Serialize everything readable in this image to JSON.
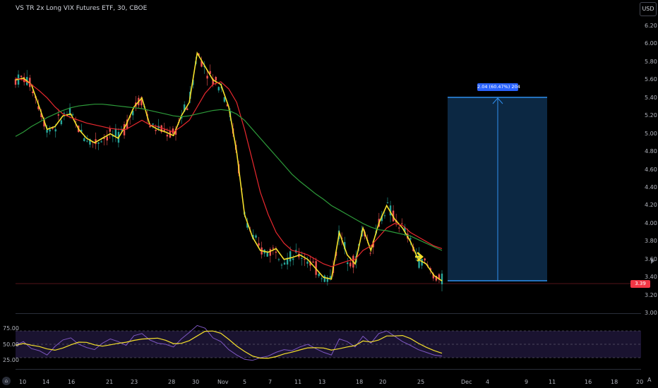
{
  "header": {
    "symbol_title": "VS TR 2x Long VIX Futures ETF, 30, CBOE",
    "currency_button": "USD"
  },
  "price_axis": {
    "ticks": [
      "6.20",
      "6.00",
      "5.80",
      "5.60",
      "5.40",
      "5.20",
      "5.00",
      "4.80",
      "4.60",
      "4.40",
      "4.20",
      "4.00",
      "3.80",
      "3.60",
      "3.40",
      "3.20",
      "3.00"
    ],
    "current_price_tag": "3.39"
  },
  "time_axis": {
    "labels": [
      "10",
      "14",
      "16",
      "21",
      "23",
      "28",
      "30",
      "Nov",
      "5",
      "7",
      "11",
      "13",
      "18",
      "20",
      "25",
      "Dec",
      "4",
      "9",
      "11",
      "16",
      "18",
      "20"
    ]
  },
  "oscillator_axis": {
    "ticks": [
      "75.00",
      "50.00",
      "25.00"
    ]
  },
  "measure_tool": {
    "label": "2.04 (60.47%) 204"
  },
  "footer": {
    "logo": "⌂",
    "auto_button": "A"
  },
  "colors": {
    "background": "#000000",
    "fast_ma": "#f5e02b",
    "medium_ma": "#e8282e",
    "slow_ma": "#2d9b3a",
    "candle_up": "#26a69a",
    "candle_down": "#ef5350",
    "measure_fill": "#0d2a47",
    "measure_line": "#2f8ff0",
    "rsi_line": "#7e57c2",
    "rsi_signal": "#f5e02b",
    "current_price": "#f23645"
  },
  "chart_data": {
    "type": "line",
    "title": "VS TR 2x Long VIX Futures ETF, 30, CBOE",
    "ylim": [
      3.0,
      6.3
    ],
    "series": [
      {
        "name": "",
        "values": [
          5.6,
          5.62,
          5.55,
          5.3,
          5.05,
          5.08,
          5.2,
          5.22,
          5.05,
          4.95,
          4.9,
          4.95,
          5.0,
          4.95,
          5.1,
          5.3,
          5.4,
          5.1,
          5.05,
          5.02,
          4.98,
          5.2,
          5.35,
          5.9,
          5.75,
          5.6,
          5.55,
          5.3,
          4.8,
          4.1,
          3.85,
          3.7,
          3.68,
          3.72,
          3.6,
          3.62,
          3.65,
          3.6,
          3.5,
          3.4,
          3.38,
          3.9,
          3.65,
          3.55,
          3.95,
          3.7,
          4.0,
          4.2,
          4.05,
          3.95,
          3.8,
          3.6,
          3.55,
          3.42,
          3.36
        ]
      },
      {
        "name": "",
        "values": [
          5.62,
          5.6,
          5.55,
          5.48,
          5.4,
          5.3,
          5.22,
          5.18,
          5.15,
          5.12,
          5.1,
          5.08,
          5.06,
          5.05,
          5.05,
          5.1,
          5.15,
          5.1,
          5.08,
          5.05,
          5.02,
          5.08,
          5.15,
          5.3,
          5.45,
          5.55,
          5.58,
          5.5,
          5.35,
          5.05,
          4.7,
          4.35,
          4.1,
          3.9,
          3.78,
          3.7,
          3.68,
          3.65,
          3.6,
          3.55,
          3.52,
          3.55,
          3.58,
          3.6,
          3.7,
          3.75,
          3.85,
          3.95,
          4.0,
          3.98,
          3.9,
          3.85,
          3.8,
          3.75,
          3.72
        ]
      },
      {
        "name": "",
        "values": [
          4.97,
          5.02,
          5.08,
          5.13,
          5.18,
          5.22,
          5.26,
          5.29,
          5.31,
          5.32,
          5.33,
          5.33,
          5.32,
          5.31,
          5.3,
          5.29,
          5.28,
          5.26,
          5.24,
          5.22,
          5.2,
          5.19,
          5.2,
          5.22,
          5.24,
          5.26,
          5.27,
          5.26,
          5.22,
          5.15,
          5.05,
          4.95,
          4.85,
          4.75,
          4.65,
          4.55,
          4.47,
          4.4,
          4.33,
          4.27,
          4.2,
          4.15,
          4.1,
          4.05,
          4.0,
          3.96,
          3.93,
          3.92,
          3.9,
          3.88,
          3.86,
          3.82,
          3.78,
          3.74,
          3.7
        ]
      }
    ],
    "oscillator": {
      "ylim": [
        0,
        100
      ],
      "levels": [
        70,
        50,
        30
      ],
      "values": [
        48,
        55,
        42,
        38,
        30,
        46,
        58,
        62,
        50,
        44,
        40,
        52,
        60,
        55,
        48,
        66,
        70,
        58,
        52,
        50,
        45,
        60,
        72,
        85,
        80,
        62,
        55,
        40,
        30,
        22,
        20,
        25,
        28,
        35,
        40,
        38,
        45,
        50,
        42,
        35,
        30,
        60,
        55,
        45,
        65,
        52,
        70,
        75,
        65,
        55,
        48,
        40,
        35,
        30,
        28
      ]
    },
    "measure": {
      "from": 3.37,
      "to": 5.41,
      "change": 2.04,
      "percent": 60.47
    }
  }
}
